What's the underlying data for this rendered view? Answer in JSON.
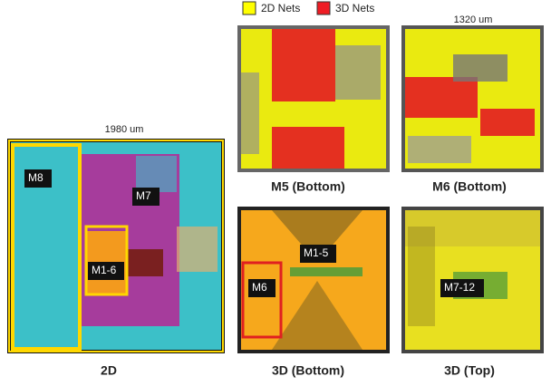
{
  "legend": [
    {
      "label": "2D Nets"
    },
    {
      "label": "3D Nets"
    }
  ],
  "dimensions": {
    "width_2d": "1980 um",
    "width_3d": "1320 um"
  },
  "panels": [
    {
      "caption": "2D",
      "labels": [
        "M8",
        "M7",
        "M1-6"
      ]
    },
    {
      "caption": "M5 (Bottom)"
    },
    {
      "caption": "M6 (Bottom)"
    },
    {
      "caption": "3D (Bottom)",
      "labels": [
        "M1-5",
        "M6"
      ]
    },
    {
      "caption": "3D (Top)",
      "labels": [
        "M7-12"
      ]
    }
  ]
}
